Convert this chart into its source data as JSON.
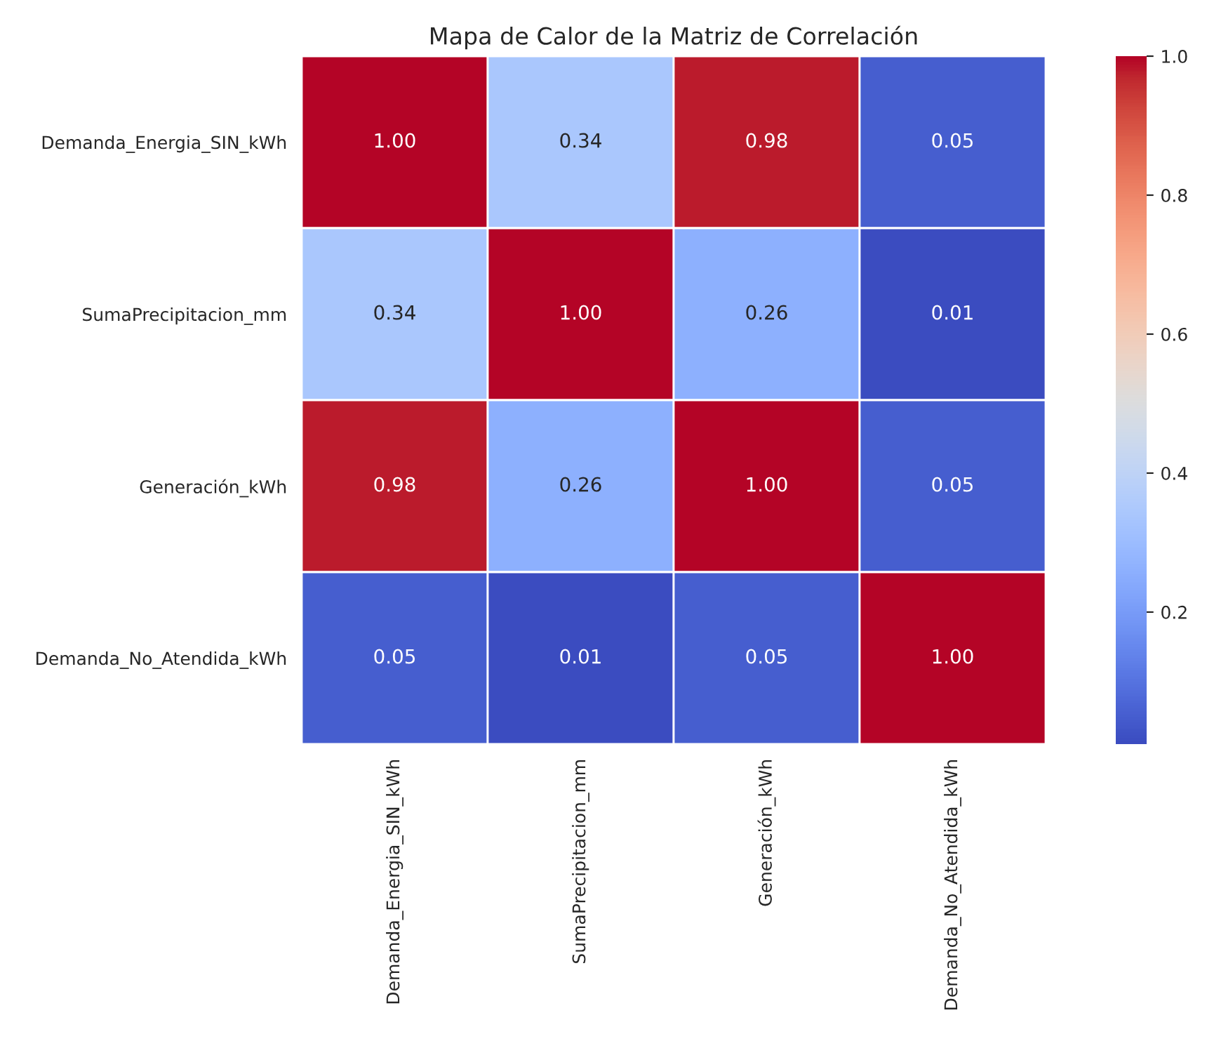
{
  "chart_data": {
    "type": "heatmap",
    "title": "Mapa de Calor de la Matriz de Correlación",
    "categories": [
      "Demanda_Energia_SIN_kWh",
      "SumaPrecipitacion_mm",
      "Generación_kWh",
      "Demanda_No_Atendida_kWh"
    ],
    "y_categories": [
      "Demanda_Energia_SIN_kWh",
      "SumaPrecipitacion_mm",
      "Generación_kWh",
      "Demanda_No_Atendida_kWh"
    ],
    "cells": [
      [
        1.0,
        0.34,
        0.98,
        0.05
      ],
      [
        0.34,
        1.0,
        0.26,
        0.01
      ],
      [
        0.98,
        0.26,
        1.0,
        0.05
      ],
      [
        0.05,
        0.01,
        0.05,
        1.0
      ]
    ],
    "cell_labels": [
      [
        "1.00",
        "0.34",
        "0.98",
        "0.05"
      ],
      [
        "0.34",
        "1.00",
        "0.26",
        "0.01"
      ],
      [
        "0.98",
        "0.26",
        "1.00",
        "0.05"
      ],
      [
        "0.05",
        "0.01",
        "0.05",
        "1.00"
      ]
    ],
    "clim": [
      0.01,
      1.0
    ],
    "cticks": [
      0.2,
      0.4,
      0.6,
      0.8,
      {
        "value": 1,
        "label": "1.0"
      }
    ]
  }
}
